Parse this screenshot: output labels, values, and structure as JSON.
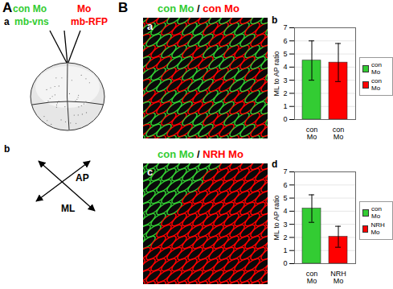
{
  "chart_data": [
    {
      "type": "bar",
      "panel": "b",
      "y_label": "ML to AP ratio",
      "categories": [
        "con Mo",
        "con Mo"
      ],
      "values": [
        4.5,
        4.35
      ],
      "errors": [
        1.5,
        1.45
      ],
      "colors": [
        "#33cc33",
        "#ff0000"
      ],
      "ylim": [
        0,
        7
      ],
      "yticks": [
        0,
        1,
        2,
        3,
        4,
        5,
        6,
        7
      ],
      "grid": true,
      "legend": "right"
    },
    {
      "type": "bar",
      "panel": "d",
      "y_label": "ML to AP ratio",
      "categories": [
        "con Mo",
        "NRH Mo"
      ],
      "values": [
        4.2,
        2.05
      ],
      "errors": [
        1.05,
        0.8
      ],
      "colors": [
        "#33cc33",
        "#ff0000"
      ],
      "ylim": [
        0,
        7
      ],
      "yticks": [
        0,
        1,
        2,
        3,
        4,
        5,
        6,
        7
      ],
      "grid": true,
      "legend": "right"
    }
  ],
  "figure": {
    "A": {
      "label": "A",
      "a": {
        "label": "a",
        "injections": [
          {
            "text": "con Mo",
            "sub": "mb-vns",
            "color": "#33cc33"
          },
          {
            "text": "Mo",
            "sub": "mb-RFP",
            "color": "#ff0000"
          }
        ]
      },
      "b": {
        "label": "b",
        "axes": [
          "AP",
          "ML"
        ]
      }
    },
    "B": {
      "label": "B",
      "a": {
        "label": "a",
        "title_left": "con Mo",
        "separator": "/",
        "title_right": "con Mo",
        "colors": [
          "#33cc33",
          "#ff0000"
        ]
      },
      "c": {
        "label": "c",
        "title_left": "con Mo",
        "separator": "/",
        "title_right": "NRH Mo",
        "colors": [
          "#33cc33",
          "#ff0000"
        ]
      }
    }
  }
}
